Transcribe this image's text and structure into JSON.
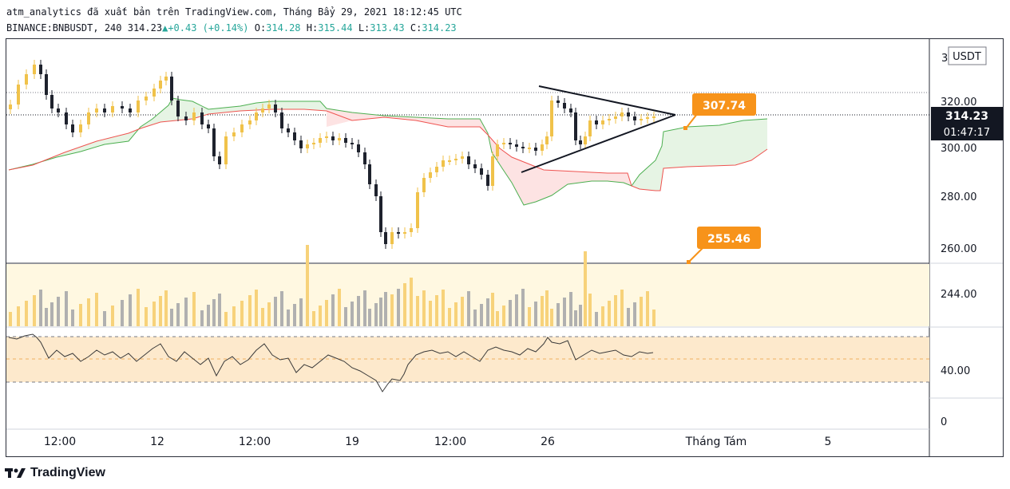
{
  "header": {
    "line1": "atm_analytics đã xuất bản trên TradingView.com, Tháng Bẩy 29, 2021 18:12:45 UTC",
    "symbol": "BINANCE:BNBUSDT, 240",
    "price": "314.23",
    "change": "+0.43 (+0.14%)",
    "o_label": "O:",
    "o": "314.28",
    "h_label": "H:",
    "h": "315.44",
    "l_label": "L:",
    "l": "313.43",
    "c_label": "C:",
    "c": "314.23"
  },
  "price_axis": {
    "currency": "USDT",
    "top_partial": "3",
    "ticks": [
      "320.00",
      "300.00",
      "280.00",
      "260.00"
    ],
    "last_price": "314.23",
    "countdown": "01:47:17",
    "last_price_color": "#131722"
  },
  "volume_axis": {
    "ticks": [
      "244.00"
    ]
  },
  "rsi_axis": {
    "ticks": [
      "40.00",
      "0"
    ]
  },
  "time_axis": {
    "labels": [
      "12:00",
      "12",
      "12:00",
      "19",
      "12:00",
      "26",
      "Tháng Tám",
      "5"
    ]
  },
  "annotations": {
    "upper_callout": "307.74",
    "lower_callout": "255.46",
    "callout_color": "#f7931a"
  },
  "colors": {
    "up_candle": "#f0c24a",
    "down_candle": "#1e222d",
    "cloud_green": "#e6f4e4",
    "cloud_red": "#fde3e3",
    "span_a": "#4caf50",
    "span_b": "#ef5350",
    "volume_bg": "#fff8e1",
    "rsi_bg": "#fde9cc"
  },
  "footer": {
    "brand": "TradingView"
  }
}
